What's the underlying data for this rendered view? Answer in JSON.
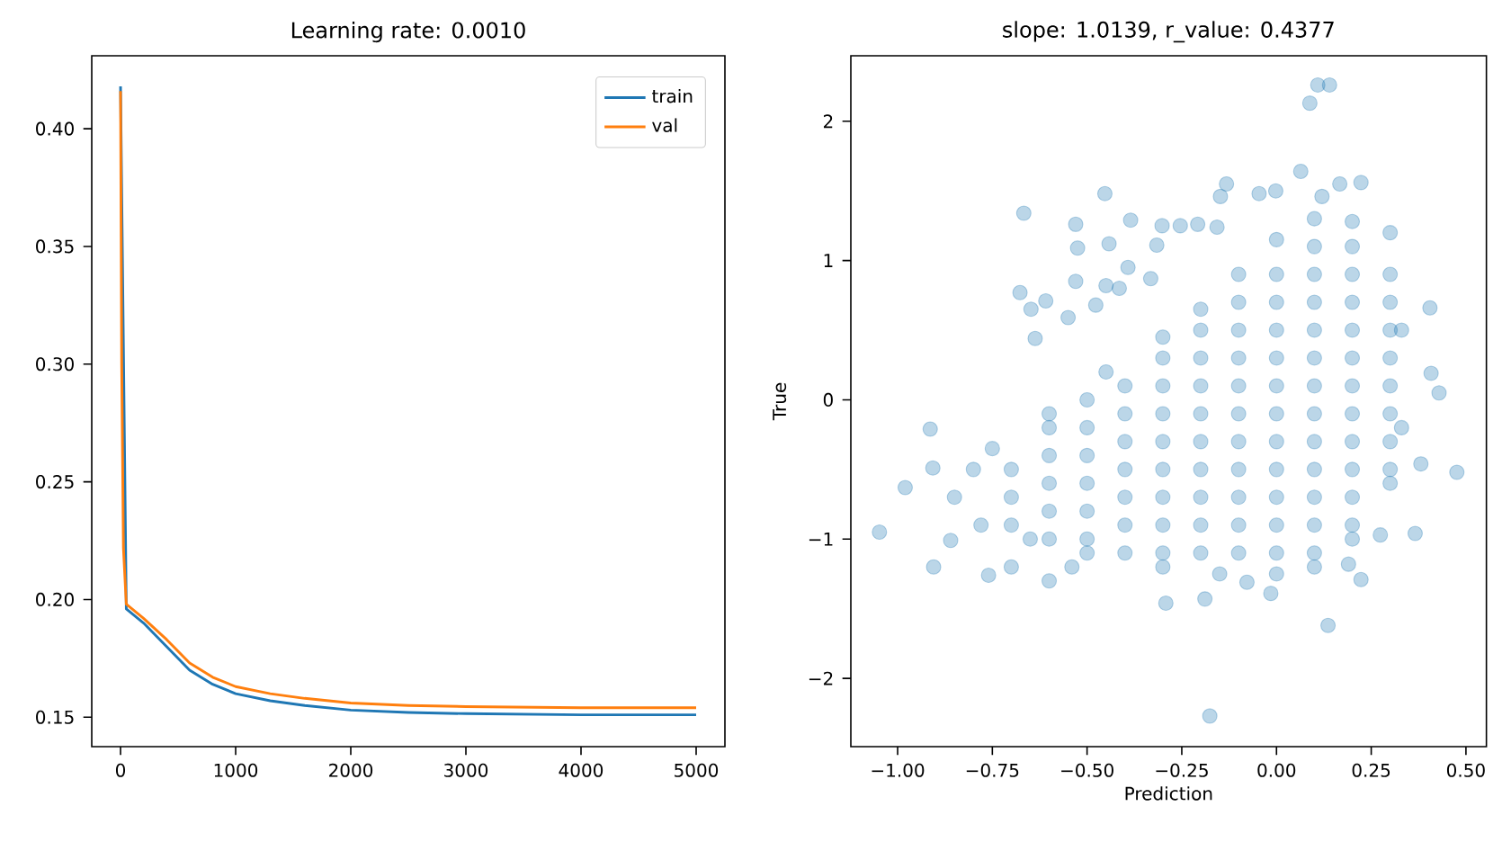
{
  "chart_data": [
    {
      "type": "line",
      "title": "Learning rate: 0.0010",
      "xlim": [
        -250,
        5250
      ],
      "ylim": [
        0.1375,
        0.431
      ],
      "xticks": [
        0,
        1000,
        2000,
        3000,
        4000,
        5000
      ],
      "yticks": [
        {
          "value": 0.15,
          "label": "0.15"
        },
        {
          "value": 0.2,
          "label": "0.20"
        },
        {
          "value": 0.25,
          "label": "0.25"
        },
        {
          "value": 0.3,
          "label": "0.30"
        },
        {
          "value": 0.35,
          "label": "0.35"
        },
        {
          "value": 0.4,
          "label": "0.40"
        }
      ],
      "legend": "top right",
      "x": [
        0,
        10,
        25,
        50,
        200,
        400,
        600,
        800,
        1000,
        1300,
        1600,
        2000,
        2500,
        3000,
        4000,
        5000
      ],
      "series": [
        {
          "name": "train",
          "color": "#1f77b4",
          "values": [
            0.418,
            null,
            null,
            0.196,
            0.19,
            0.18,
            0.17,
            0.164,
            0.16,
            0.157,
            0.155,
            0.153,
            0.152,
            0.1515,
            0.151,
            0.151
          ]
        },
        {
          "name": "val",
          "color": "#ff7f0e",
          "values": [
            0.416,
            0.3,
            0.222,
            0.198,
            0.192,
            0.183,
            0.173,
            0.167,
            0.163,
            0.16,
            0.158,
            0.156,
            0.155,
            0.1545,
            0.154,
            0.154
          ]
        }
      ]
    },
    {
      "type": "scatter",
      "title": "slope: 1.0139, r_value: 0.4377",
      "xlabel": "Prediction",
      "ylabel": "True",
      "xlim": [
        -1.1235,
        0.554
      ],
      "ylim": [
        -2.49,
        2.47
      ],
      "xticks": [
        {
          "value": -1,
          "label": "−1.00"
        },
        {
          "value": -0.75,
          "label": "−0.75"
        },
        {
          "value": -0.5,
          "label": "−0.50"
        },
        {
          "value": -0.25,
          "label": "−0.25"
        },
        {
          "value": 0,
          "label": "0.00"
        },
        {
          "value": 0.25,
          "label": "0.25"
        },
        {
          "value": 0.5,
          "label": "0.50"
        }
      ],
      "yticks": [
        {
          "value": -2,
          "label": "−2"
        },
        {
          "value": -1,
          "label": "−1"
        },
        0,
        1,
        2
      ],
      "marker": "circle",
      "color": "#1f77b4",
      "x": [
        -1.048,
        -0.98,
        -0.914,
        -0.907,
        -0.905,
        -0.86,
        -0.76,
        -0.667,
        -0.677,
        -0.648,
        -0.609,
        -0.637,
        -0.53,
        -0.525,
        -0.53,
        -0.55,
        -0.477,
        -0.453,
        -0.442,
        -0.45,
        -0.415,
        -0.392,
        -0.385,
        -0.332,
        -0.316,
        -0.302,
        -0.254,
        -0.208,
        -0.157,
        -0.148,
        -0.132,
        -0.046,
        -0.002,
        0.064,
        0.088,
        0.109,
        0.14,
        0.12,
        0.167,
        0.223,
        0.405,
        0.429,
        0.408,
        0.476,
        0.381,
        0.366,
        0.136,
        -0.176,
        -0.292,
        -0.189,
        0.274,
        0.223,
        0.19,
        -0.015,
        -0.078,
        -0.6,
        -0.54,
        -0.7,
        -0.75,
        -0.6,
        -0.45,
        -0.3,
        -0.2,
        -0.1,
        0.0,
        0.1,
        0.2,
        0.3,
        0.33,
        0.33,
        0.3,
        0.2,
        0.1,
        0.0,
        -0.15,
        -0.3,
        -0.5,
        -0.65,
        -0.78,
        -0.85,
        -0.8,
        -0.7,
        -0.7,
        -0.7,
        -0.6,
        -0.6,
        -0.6,
        -0.6,
        -0.6,
        -0.5,
        -0.5,
        -0.5,
        -0.5,
        -0.5,
        -0.5,
        -0.4,
        -0.4,
        -0.4,
        -0.4,
        -0.4,
        -0.4,
        -0.4,
        -0.3,
        -0.3,
        -0.3,
        -0.3,
        -0.3,
        -0.3,
        -0.3,
        -0.3,
        -0.2,
        -0.2,
        -0.2,
        -0.2,
        -0.2,
        -0.2,
        -0.2,
        -0.2,
        -0.2,
        -0.1,
        -0.1,
        -0.1,
        -0.1,
        -0.1,
        -0.1,
        -0.1,
        -0.1,
        -0.1,
        -0.1,
        0.0,
        0.0,
        0.0,
        0.0,
        0.0,
        0.0,
        0.0,
        0.0,
        0.0,
        0.0,
        0.0,
        0.1,
        0.1,
        0.1,
        0.1,
        0.1,
        0.1,
        0.1,
        0.1,
        0.1,
        0.1,
        0.1,
        0.1,
        0.2,
        0.2,
        0.2,
        0.2,
        0.2,
        0.2,
        0.2,
        0.2,
        0.2,
        0.2,
        0.2,
        0.3,
        0.3,
        0.3,
        0.3,
        0.3,
        0.3,
        0.3,
        0.3
      ],
      "values": [
        -0.95,
        -0.63,
        -0.21,
        -0.49,
        -1.2,
        -1.01,
        -1.26,
        1.34,
        0.77,
        0.65,
        0.71,
        0.44,
        1.26,
        1.09,
        0.85,
        0.59,
        0.68,
        1.48,
        1.12,
        0.82,
        0.8,
        0.95,
        1.29,
        0.87,
        1.11,
        1.25,
        1.25,
        1.26,
        1.24,
        1.46,
        1.55,
        1.48,
        1.5,
        1.64,
        2.13,
        2.26,
        2.26,
        1.46,
        1.55,
        1.56,
        0.66,
        0.05,
        0.19,
        -0.52,
        -0.46,
        -0.96,
        -1.62,
        -2.27,
        -1.46,
        -1.43,
        -0.97,
        -1.29,
        -1.18,
        -1.39,
        -1.31,
        -1.3,
        -1.2,
        -1.2,
        -0.35,
        -0.1,
        0.2,
        0.45,
        0.65,
        0.9,
        1.15,
        1.3,
        1.28,
        1.2,
        0.5,
        -0.2,
        -0.6,
        -1.0,
        -1.2,
        -1.25,
        -1.25,
        -1.2,
        -1.1,
        -1.0,
        -0.9,
        -0.7,
        -0.5,
        -0.9,
        -0.7,
        -0.5,
        -1.0,
        -0.8,
        -0.6,
        -0.4,
        -0.2,
        -1.0,
        -0.8,
        -0.6,
        -0.4,
        -0.2,
        0.0,
        -1.1,
        -0.9,
        -0.7,
        -0.5,
        -0.3,
        -0.1,
        0.1,
        -1.1,
        -0.9,
        -0.7,
        -0.5,
        -0.3,
        -0.1,
        0.1,
        0.3,
        -1.1,
        -0.9,
        -0.7,
        -0.5,
        -0.3,
        -0.1,
        0.1,
        0.3,
        0.5,
        -1.1,
        -0.9,
        -0.7,
        -0.5,
        -0.3,
        -0.1,
        0.1,
        0.3,
        0.5,
        0.7,
        -1.1,
        -0.9,
        -0.7,
        -0.5,
        -0.3,
        -0.1,
        0.1,
        0.3,
        0.5,
        0.7,
        0.9,
        -1.1,
        -0.9,
        -0.7,
        -0.5,
        -0.3,
        -0.1,
        0.1,
        0.3,
        0.5,
        0.7,
        0.9,
        1.1,
        -0.9,
        -0.7,
        -0.5,
        -0.3,
        -0.1,
        0.1,
        0.3,
        0.5,
        0.7,
        0.9,
        1.1,
        -0.5,
        -0.3,
        -0.1,
        0.1,
        0.3,
        0.5,
        0.7,
        0.9
      ]
    }
  ]
}
